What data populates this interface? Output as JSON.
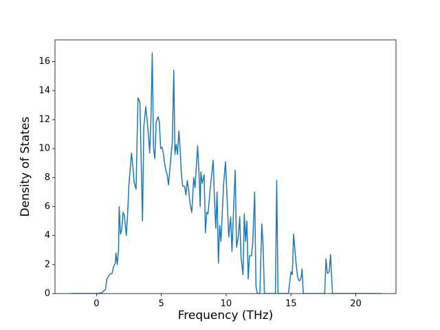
{
  "chart_data": {
    "type": "line",
    "x_label": "Frequency (THz)",
    "y_label": "Density of States",
    "xlim": [
      -3.2,
      23.1
    ],
    "ylim": [
      0,
      17.5
    ],
    "xticks": [
      0,
      5,
      10,
      15,
      20
    ],
    "yticks": [
      0,
      2,
      4,
      6,
      8,
      10,
      12,
      14,
      16
    ],
    "grid": false,
    "x": [
      -2,
      0,
      0.4,
      0.7,
      0.8,
      1.0,
      1.2,
      1.3,
      1.45,
      1.5,
      1.6,
      1.7,
      1.75,
      1.85,
      1.95,
      2.05,
      2.15,
      2.3,
      2.4,
      2.5,
      2.6,
      2.7,
      2.8,
      2.9,
      3.05,
      3.2,
      3.35,
      3.45,
      3.55,
      3.65,
      3.8,
      3.9,
      4.0,
      4.1,
      4.2,
      4.3,
      4.4,
      4.5,
      4.6,
      4.75,
      4.85,
      4.95,
      5.05,
      5.15,
      5.25,
      5.35,
      5.45,
      5.55,
      5.7,
      5.85,
      5.96,
      6.05,
      6.15,
      6.25,
      6.35,
      6.45,
      6.55,
      6.65,
      6.8,
      6.9,
      7.0,
      7.1,
      7.2,
      7.35,
      7.5,
      7.6,
      7.8,
      7.9,
      8.0,
      8.05,
      8.15,
      8.3,
      8.4,
      8.5,
      8.6,
      8.8,
      9.0,
      9.1,
      9.2,
      9.3,
      9.4,
      9.5,
      9.6,
      9.8,
      9.95,
      10.1,
      10.2,
      10.35,
      10.45,
      10.6,
      10.7,
      10.8,
      10.95,
      11.05,
      11.15,
      11.3,
      11.4,
      11.5,
      11.6,
      11.7,
      11.8,
      11.95,
      12.05,
      12.2,
      12.3,
      12.4,
      12.6,
      12.75,
      12.85,
      12.95,
      13.8,
      13.9,
      14.0,
      14.8,
      15.0,
      15.1,
      15.2,
      15.35,
      15.5,
      15.6,
      15.7,
      15.8,
      15.85,
      15.95,
      17.6,
      17.7,
      17.8,
      17.95,
      18.05,
      18.2,
      22
    ],
    "series": [
      {
        "color": "#1f77b4",
        "values": [
          0,
          0,
          0.05,
          0.3,
          1.0,
          1.3,
          1.4,
          1.8,
          2.1,
          2.8,
          2.0,
          3.0,
          6.0,
          4.1,
          4.4,
          5.6,
          5.4,
          4.0,
          5.5,
          7.5,
          8.6,
          9.7,
          8.8,
          7.7,
          7.2,
          13.5,
          13.2,
          9.0,
          5.0,
          11.5,
          12.9,
          12.0,
          11.0,
          9.7,
          12.0,
          16.6,
          10.0,
          9.3,
          11.8,
          12.2,
          11.8,
          10.0,
          10.1,
          9.7,
          9.0,
          8.5,
          8.2,
          7.5,
          9.0,
          10.5,
          15.4,
          9.6,
          10.3,
          9.6,
          11.2,
          10.0,
          8.2,
          7.4,
          7.4,
          6.8,
          7.8,
          7.2,
          6.3,
          5.6,
          8.0,
          7.3,
          10.2,
          8.4,
          6.0,
          8.4,
          7.6,
          8.2,
          4.2,
          5.6,
          5.5,
          7.5,
          9.2,
          6.5,
          4.5,
          7.0,
          2.1,
          4.7,
          3.6,
          7.5,
          9.1,
          6.0,
          3.9,
          5.3,
          2.9,
          6.5,
          8.5,
          3.2,
          4.0,
          5.3,
          2.5,
          1.3,
          5.5,
          3.6,
          5.0,
          1.0,
          2.6,
          2.6,
          3.5,
          7.0,
          0.5,
          0,
          0,
          4.8,
          3.3,
          0,
          0,
          7.8,
          0,
          0,
          1.5,
          1.3,
          4.1,
          2.5,
          1.2,
          0.9,
          0.9,
          1.2,
          1.7,
          0,
          0,
          2.4,
          1.4,
          1.5,
          2.7,
          0,
          0
        ]
      }
    ]
  }
}
